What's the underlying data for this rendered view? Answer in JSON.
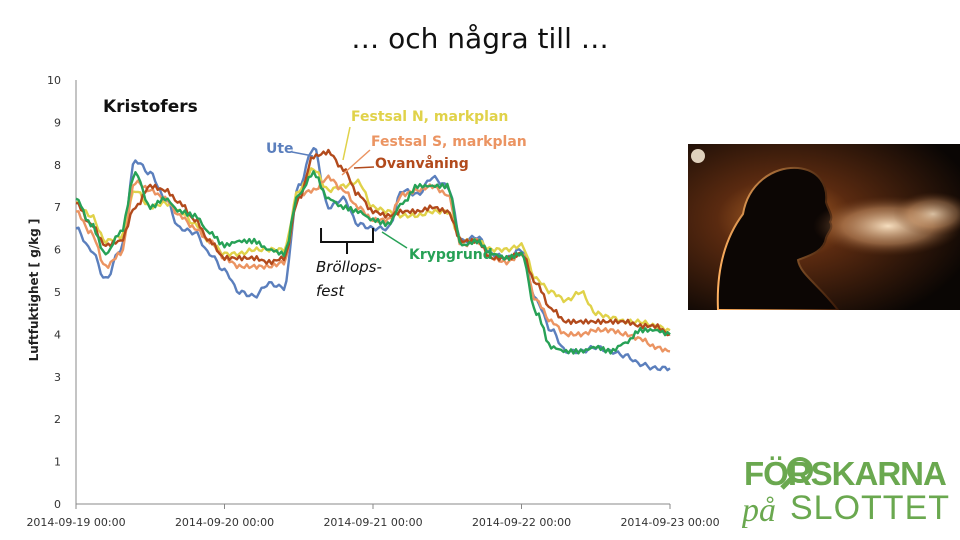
{
  "slide": {
    "title": "… och några till …"
  },
  "chart_data": {
    "type": "line",
    "title": "",
    "ylabel": "Luftfuktighet [ g/kg ]",
    "xlabel": "",
    "ylim": [
      0,
      10
    ],
    "yticks": [
      0,
      1,
      2,
      3,
      4,
      5,
      6,
      7,
      8,
      9,
      10
    ],
    "xlim": [
      0,
      4
    ],
    "xtick_labels": [
      "2014-09-19 00:00",
      "2014-09-20 00:00",
      "2014-09-21 00:00",
      "2014-09-22 00:00",
      "2014-09-23 00:00"
    ],
    "grid": false,
    "inner_label": "Kristofers",
    "event_label": "Bröllops-\nfest",
    "event_range": [
      1.65,
      2.0
    ],
    "series": [
      {
        "name": "Ute",
        "color": "#5b7fbd",
        "x": [
          0,
          0.1,
          0.2,
          0.3,
          0.4,
          0.5,
          0.6,
          0.7,
          0.8,
          0.9,
          1.0,
          1.1,
          1.2,
          1.3,
          1.4,
          1.5,
          1.6,
          1.7,
          1.8,
          1.9,
          2.0,
          2.1,
          2.2,
          2.3,
          2.4,
          2.5,
          2.6,
          2.7,
          2.8,
          2.9,
          3.0,
          3.1,
          3.2,
          3.3,
          3.4,
          3.5,
          3.6,
          3.7,
          3.8,
          3.9,
          4.0
        ],
        "y": [
          6.5,
          6.0,
          5.3,
          6.0,
          8.1,
          7.8,
          7.2,
          6.5,
          6.4,
          5.9,
          5.5,
          5.0,
          4.9,
          5.2,
          5.1,
          7.5,
          8.4,
          7.0,
          7.2,
          6.6,
          6.5,
          6.5,
          7.4,
          7.3,
          7.7,
          7.5,
          6.2,
          6.3,
          5.9,
          5.8,
          6.0,
          4.8,
          4.1,
          3.6,
          3.6,
          3.7,
          3.6,
          3.5,
          3.3,
          3.2,
          3.2
        ]
      },
      {
        "name": "Festsal N, markplan",
        "color": "#e0d24a",
        "x": [
          0,
          0.1,
          0.2,
          0.3,
          0.4,
          0.5,
          0.6,
          0.7,
          0.8,
          0.9,
          1.0,
          1.1,
          1.2,
          1.3,
          1.4,
          1.5,
          1.6,
          1.7,
          1.8,
          1.9,
          2.0,
          2.1,
          2.2,
          2.3,
          2.4,
          2.5,
          2.6,
          2.7,
          2.8,
          2.9,
          3.0,
          3.1,
          3.2,
          3.3,
          3.4,
          3.5,
          3.6,
          3.7,
          3.8,
          3.9,
          4.0
        ],
        "y": [
          7.1,
          6.8,
          6.2,
          6.3,
          7.4,
          7.0,
          7.1,
          6.9,
          6.6,
          6.2,
          5.9,
          5.9,
          6.0,
          6.0,
          6.0,
          7.4,
          7.9,
          7.4,
          7.5,
          7.6,
          7.0,
          6.9,
          6.8,
          6.8,
          6.9,
          6.9,
          6.2,
          6.2,
          6.0,
          6.0,
          6.1,
          5.3,
          5.0,
          4.8,
          5.0,
          4.5,
          4.4,
          4.3,
          4.3,
          4.2,
          4.1
        ]
      },
      {
        "name": "Festsal S, markplan",
        "color": "#eb9462",
        "x": [
          0,
          0.1,
          0.2,
          0.3,
          0.4,
          0.5,
          0.6,
          0.7,
          0.8,
          0.9,
          1.0,
          1.1,
          1.2,
          1.3,
          1.4,
          1.5,
          1.6,
          1.7,
          1.8,
          1.9,
          2.0,
          2.1,
          2.2,
          2.3,
          2.4,
          2.5,
          2.6,
          2.7,
          2.8,
          2.9,
          3.0,
          3.1,
          3.2,
          3.3,
          3.4,
          3.5,
          3.6,
          3.7,
          3.8,
          3.9,
          4.0
        ],
        "y": [
          6.9,
          6.4,
          5.6,
          5.9,
          7.6,
          7.4,
          7.2,
          6.8,
          6.5,
          6.2,
          5.8,
          5.6,
          5.6,
          5.6,
          5.7,
          7.3,
          7.4,
          7.7,
          7.4,
          7.0,
          6.7,
          6.7,
          7.3,
          7.4,
          7.5,
          7.3,
          6.1,
          6.2,
          5.8,
          5.7,
          5.9,
          4.8,
          4.3,
          4.0,
          4.0,
          4.1,
          4.1,
          4.0,
          3.9,
          3.7,
          3.6
        ]
      },
      {
        "name": "Ovanvåning",
        "color": "#b24a1c",
        "x": [
          0,
          0.1,
          0.2,
          0.3,
          0.4,
          0.5,
          0.6,
          0.7,
          0.8,
          0.9,
          1.0,
          1.1,
          1.2,
          1.3,
          1.4,
          1.5,
          1.6,
          1.7,
          1.8,
          1.9,
          2.0,
          2.1,
          2.2,
          2.3,
          2.4,
          2.5,
          2.6,
          2.7,
          2.8,
          2.9,
          3.0,
          3.1,
          3.2,
          3.3,
          3.4,
          3.5,
          3.6,
          3.7,
          3.8,
          3.9,
          4.0
        ],
        "y": [
          7.1,
          6.6,
          6.1,
          6.2,
          7.0,
          7.5,
          7.4,
          7.1,
          6.7,
          6.2,
          5.8,
          5.8,
          5.8,
          5.7,
          5.8,
          7.2,
          8.2,
          8.3,
          7.9,
          7.3,
          6.9,
          6.8,
          6.9,
          6.9,
          7.0,
          6.9,
          6.2,
          6.2,
          5.8,
          5.8,
          5.9,
          5.2,
          4.6,
          4.3,
          4.3,
          4.3,
          4.3,
          4.3,
          4.2,
          4.2,
          4.0
        ]
      },
      {
        "name": "Krypgrund",
        "color": "#27a156",
        "x": [
          0,
          0.1,
          0.2,
          0.3,
          0.4,
          0.5,
          0.6,
          0.7,
          0.8,
          0.9,
          1.0,
          1.1,
          1.2,
          1.3,
          1.4,
          1.5,
          1.6,
          1.7,
          1.8,
          1.9,
          2.0,
          2.1,
          2.2,
          2.3,
          2.4,
          2.5,
          2.6,
          2.7,
          2.8,
          2.9,
          3.0,
          3.1,
          3.2,
          3.3,
          3.4,
          3.5,
          3.6,
          3.7,
          3.8,
          3.9,
          4.0
        ],
        "y": [
          7.2,
          6.6,
          5.9,
          6.4,
          7.8,
          7.0,
          7.2,
          6.9,
          6.8,
          6.4,
          6.1,
          6.2,
          6.2,
          6.0,
          5.9,
          7.3,
          7.8,
          7.2,
          7.0,
          6.9,
          6.7,
          6.6,
          7.1,
          7.5,
          7.5,
          7.5,
          6.1,
          6.2,
          5.9,
          5.8,
          5.9,
          4.5,
          3.7,
          3.6,
          3.6,
          3.7,
          3.6,
          3.8,
          4.1,
          4.1,
          4.0
        ]
      }
    ]
  }
}
